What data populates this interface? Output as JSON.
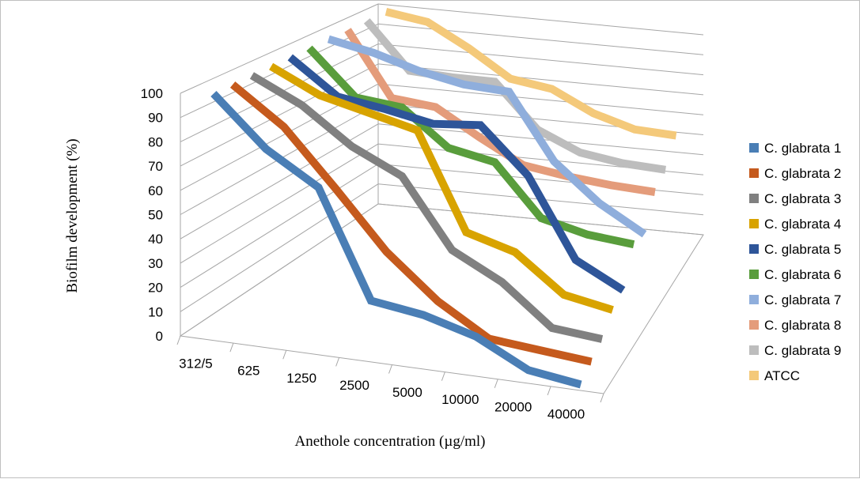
{
  "chart_data": {
    "type": "line",
    "subtype": "3d-line",
    "title": "",
    "xlabel": "Anethole concentration (µg/ml)",
    "ylabel": "Biofilm development (%)",
    "ylim": [
      0,
      100
    ],
    "yticks": [
      "0",
      "10",
      "20",
      "30",
      "40",
      "50",
      "60",
      "70",
      "80",
      "90",
      "100"
    ],
    "categories": [
      "312/5",
      "625",
      "1250",
      "2500",
      "5000",
      "10000",
      "20000",
      "40000"
    ],
    "legend_position": "right",
    "grid": true,
    "series": [
      {
        "name": "C. glabrata 1",
        "color": "#4a7eb5",
        "values": [
          100,
          80,
          67,
          23,
          20,
          14,
          3,
          0
        ]
      },
      {
        "name": "C. glabrata 2",
        "color": "#c55a1d",
        "values": [
          100,
          85,
          62,
          38,
          20,
          7,
          5,
          3
        ]
      },
      {
        "name": "C. glabrata 3",
        "color": "#808080",
        "values": [
          100,
          90,
          75,
          65,
          36,
          25,
          8,
          6
        ]
      },
      {
        "name": "C. glabrata 4",
        "color": "#d8a300",
        "values": [
          100,
          90,
          85,
          80,
          38,
          32,
          16,
          12
        ]
      },
      {
        "name": "C. glabrata 5",
        "color": "#2e5599",
        "values": [
          100,
          85,
          82,
          78,
          80,
          60,
          25,
          14
        ]
      },
      {
        "name": "C. glabrata 6",
        "color": "#599d3c",
        "values": [
          100,
          80,
          78,
          62,
          58,
          35,
          30,
          28
        ]
      },
      {
        "name": "C. glabrata 7",
        "color": "#8faedc",
        "values": [
          100,
          96,
          90,
          86,
          85,
          55,
          38,
          26
        ]
      },
      {
        "name": "C. glabrata 8",
        "color": "#e49c7b",
        "values": [
          100,
          70,
          68,
          56,
          45,
          42,
          40,
          39
        ]
      },
      {
        "name": "C. glabrata 9",
        "color": "#bdbdbd",
        "values": [
          100,
          78,
          77,
          77,
          56,
          47,
          44,
          43
        ]
      },
      {
        "name": "ATCC",
        "color": "#f4c97a",
        "values": [
          100,
          97,
          86,
          73,
          70,
          60,
          54,
          53
        ]
      }
    ]
  }
}
